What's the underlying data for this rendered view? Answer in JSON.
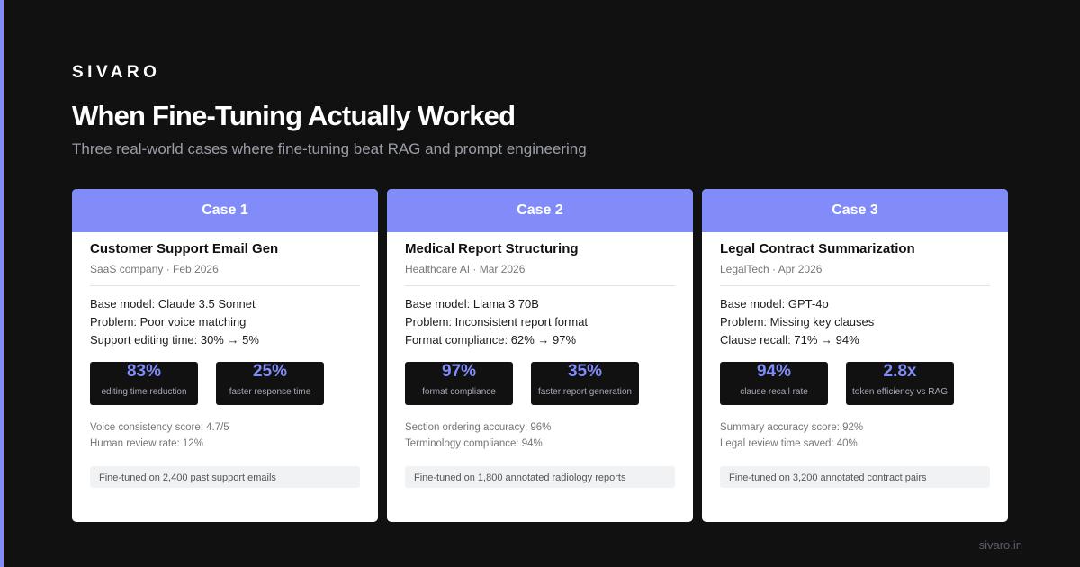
{
  "brand": "SIVARO",
  "title": "When Fine-Tuning Actually Worked",
  "subtitle": "Three real-world cases where fine-tuning beat RAG and prompt engineering",
  "cases": [
    {
      "header": "Case 1",
      "title": "Customer Support Email Gen",
      "meta": "SaaS company · Feb 2026",
      "facts": [
        "Base model: Claude 3.5 Sonnet",
        "Problem: Poor voice matching",
        "Support editing time: 30% → 5%"
      ],
      "stats": [
        {
          "value": "83%",
          "label": "editing time reduction"
        },
        {
          "value": "25%",
          "label": "faster response time"
        }
      ],
      "extras": [
        "Voice consistency score: 4.7/5",
        "Human review rate: 12%"
      ],
      "note": "Fine-tuned on 2,400 past support emails"
    },
    {
      "header": "Case 2",
      "title": "Medical Report Structuring",
      "meta": "Healthcare AI · Mar 2026",
      "facts": [
        "Base model: Llama 3 70B",
        "Problem: Inconsistent report format",
        "Format compliance: 62% → 97%"
      ],
      "stats": [
        {
          "value": "97%",
          "label": "format compliance"
        },
        {
          "value": "35%",
          "label": "faster report generation"
        }
      ],
      "extras": [
        "Section ordering accuracy: 96%",
        "Terminology compliance: 94%"
      ],
      "note": "Fine-tuned on 1,800 annotated radiology reports"
    },
    {
      "header": "Case 3",
      "title": "Legal Contract Summarization",
      "meta": "LegalTech · Apr 2026",
      "facts": [
        "Base model: GPT-4o",
        "Problem: Missing key clauses",
        "Clause recall: 71% → 94%"
      ],
      "stats": [
        {
          "value": "94%",
          "label": "clause recall rate"
        },
        {
          "value": "2.8x",
          "label": "token efficiency vs RAG"
        }
      ],
      "extras": [
        "Summary accuracy score: 92%",
        "Legal review time saved: 40%"
      ],
      "note": "Fine-tuned on 3,200 annotated contract pairs"
    }
  ],
  "footer": "sivaro.in",
  "colors": {
    "accent": "#818cf8",
    "background": "#111111",
    "card": "#ffffff"
  }
}
